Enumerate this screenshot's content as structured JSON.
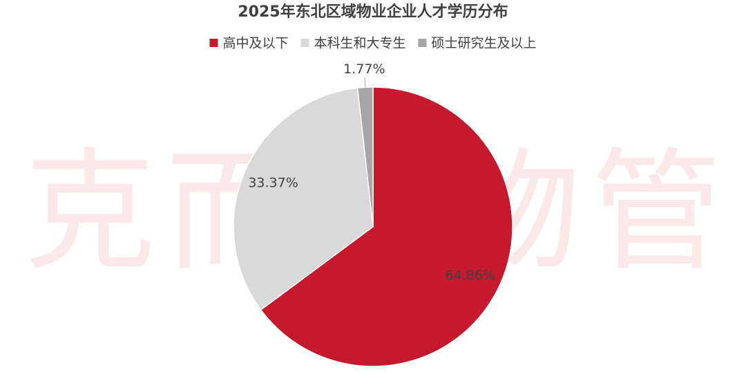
{
  "chart_data": {
    "type": "pie",
    "title": "2025年东北区域物业企业人才学历分布",
    "watermark": "克而瑞物管",
    "categories": [
      "高中及以下",
      "本科生和大专生",
      "硕士研究生及以上"
    ],
    "values": [
      64.86,
      33.37,
      1.77
    ],
    "value_labels": [
      "64.86%",
      "33.37%",
      "1.77%"
    ],
    "colors": [
      "#c51a2e",
      "#d9d9d9",
      "#a6a6a6"
    ],
    "legend": "top"
  }
}
